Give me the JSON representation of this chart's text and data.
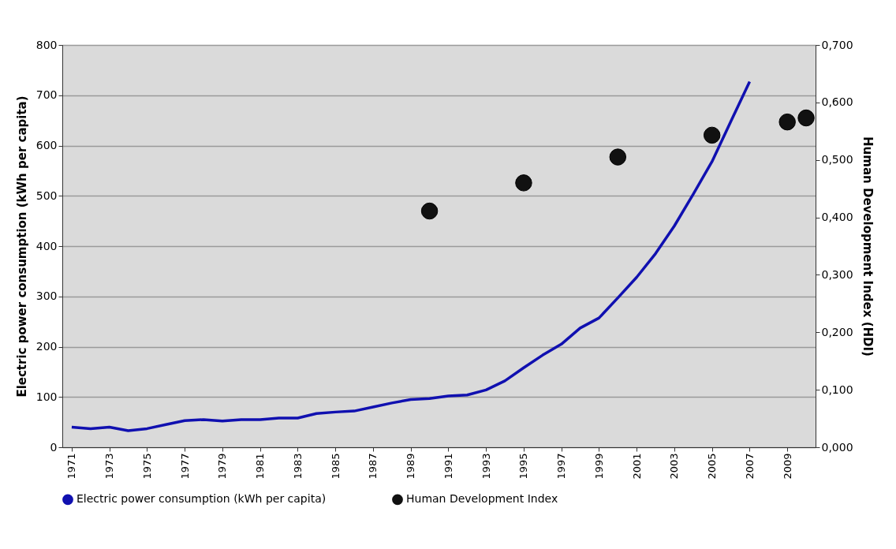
{
  "chart_data": {
    "type": "line",
    "x": [
      1971,
      1972,
      1973,
      1974,
      1975,
      1976,
      1977,
      1978,
      1979,
      1980,
      1981,
      1982,
      1983,
      1984,
      1985,
      1986,
      1987,
      1988,
      1989,
      1990,
      1991,
      1992,
      1993,
      1994,
      1995,
      1996,
      1997,
      1998,
      1999,
      2000,
      2001,
      2002,
      2003,
      2004,
      2005,
      2006,
      2007
    ],
    "ylabel": "Electric power consumption (kWh per capita)",
    "y2label": "Human Development Index (HDI)",
    "series": [
      {
        "name": "Electric power consumption (kWh per capita)",
        "color": "#1010b0",
        "values": [
          40,
          37,
          40,
          33,
          37,
          45,
          53,
          55,
          52,
          55,
          55,
          58,
          58,
          67,
          70,
          72,
          80,
          88,
          95,
          97,
          102,
          104,
          114,
          132,
          158,
          183,
          205,
          237,
          257,
          297,
          338,
          385,
          440,
          503,
          568,
          648,
          727
        ]
      },
      {
        "name": "Human Development Index",
        "type": "scatter",
        "marker": "circle",
        "axis": "y2",
        "color": "#111111",
        "x": [
          1990,
          1995,
          2000,
          2005,
          2009,
          2010
        ],
        "values": [
          0.411,
          0.46,
          0.505,
          0.543,
          0.566,
          0.573
        ]
      }
    ],
    "xlim": [
      1970.5,
      2010.5
    ],
    "xticks": [
      1971,
      1973,
      1975,
      1977,
      1979,
      1981,
      1983,
      1985,
      1987,
      1989,
      1991,
      1993,
      1995,
      1997,
      1999,
      2001,
      2003,
      2005,
      2007,
      2009
    ],
    "ylim": [
      0,
      800
    ],
    "yticks": [
      0,
      100,
      200,
      300,
      400,
      500,
      600,
      700,
      800
    ],
    "y2lim": [
      0,
      0.7
    ],
    "y2ticks": [
      {
        "value": 0,
        "label": "0,000"
      },
      {
        "value": 0.1,
        "label": "0,100"
      },
      {
        "value": 0.2,
        "label": "0,200"
      },
      {
        "value": 0.3,
        "label": "0,300"
      },
      {
        "value": 0.4,
        "label": "0,400"
      },
      {
        "value": 0.5,
        "label": "0,500"
      },
      {
        "value": 0.6,
        "label": "0,600"
      },
      {
        "value": 0.7,
        "label": "0,700"
      }
    ],
    "grid": "y",
    "legend": "bottom"
  }
}
